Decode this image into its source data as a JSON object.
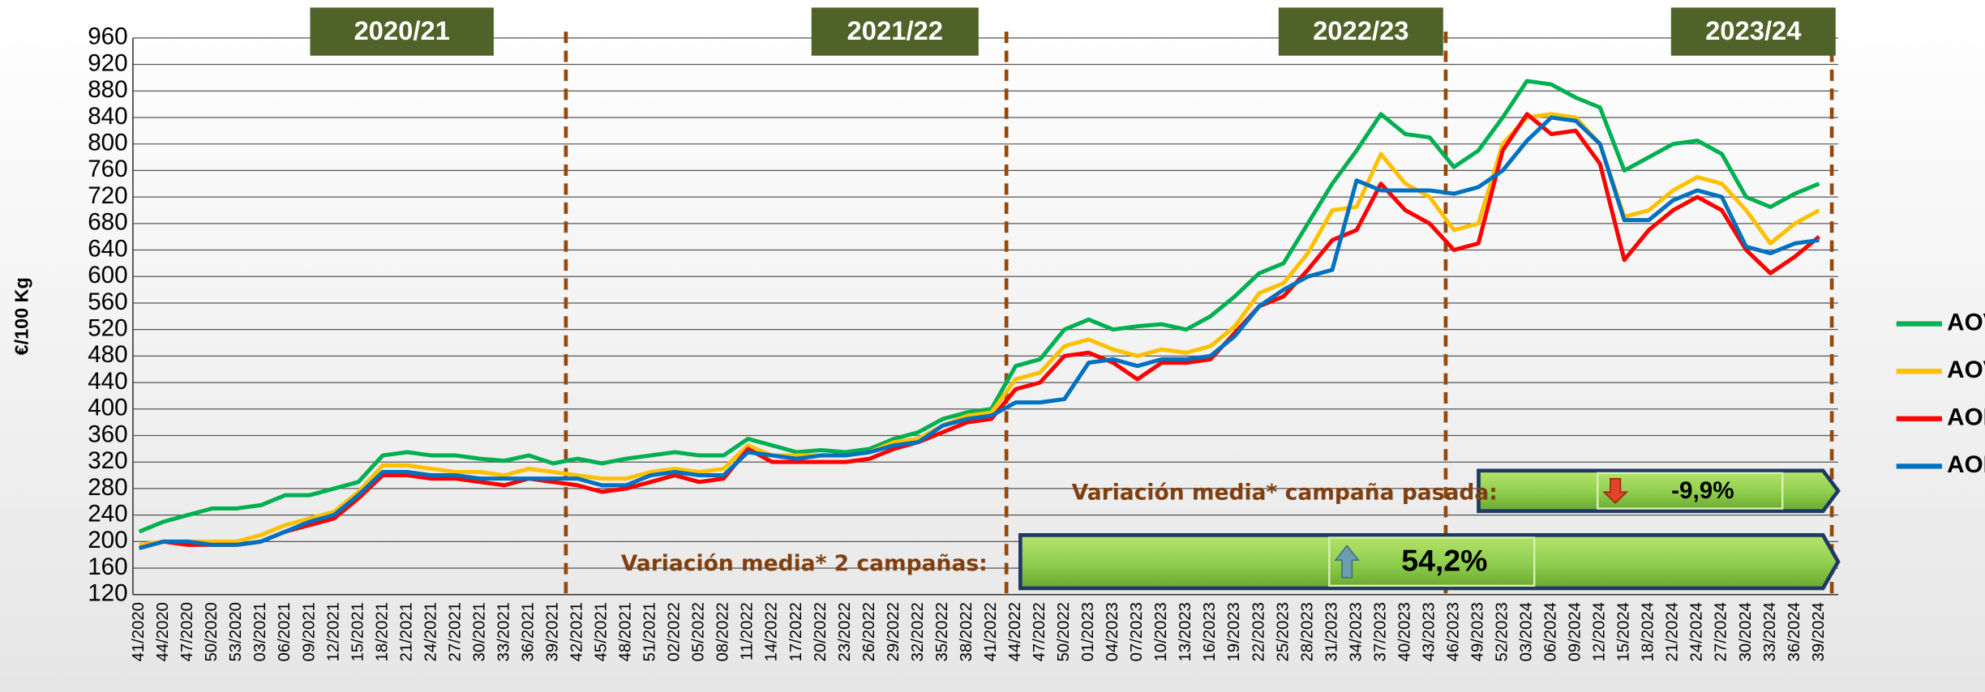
{
  "chart_data": {
    "type": "line",
    "y_label": "€/100 Kg",
    "campaigns": [
      "2020/21",
      "2021/22",
      "2022/23",
      "2023/24"
    ],
    "categories": [
      "41/2020",
      "44/2020",
      "47/2020",
      "50/2020",
      "53/2020",
      "03/2021",
      "06/2021",
      "09/2021",
      "12/2021",
      "15/2021",
      "18/2021",
      "21/2021",
      "24/2021",
      "27/2021",
      "30/2021",
      "33/2021",
      "36/2021",
      "39/2021",
      "42/2021",
      "45/2021",
      "48/2021",
      "51/2021",
      "02/2022",
      "05/2022",
      "08/2022",
      "11/2022",
      "14/2022",
      "17/2022",
      "20/2022",
      "23/2022",
      "26/2022",
      "29/2022",
      "32/2022",
      "35/2022",
      "38/2022",
      "41/2022",
      "44/2022",
      "47/2022",
      "50/2022",
      "01/2023",
      "04/2023",
      "07/2023",
      "10/2023",
      "13/2023",
      "16/2023",
      "19/2023",
      "22/2023",
      "25/2023",
      "28/2023",
      "31/2023",
      "34/2023",
      "37/2023",
      "40/2023",
      "43/2023",
      "46/2023",
      "49/2023",
      "52/2023",
      "03/2024",
      "06/2024",
      "09/2024",
      "12/2024",
      "15/2024",
      "18/2024",
      "21/2024",
      "24/2024",
      "27/2024",
      "30/2024",
      "33/2024",
      "36/2024",
      "39/2024"
    ],
    "series": [
      {
        "name": "AOVE",
        "color": "#00b050",
        "values": [
          215,
          230,
          240,
          250,
          250,
          255,
          270,
          270,
          280,
          290,
          330,
          335,
          330,
          330,
          325,
          322,
          330,
          318,
          325,
          318,
          325,
          330,
          335,
          330,
          330,
          355,
          345,
          335,
          338,
          335,
          340,
          355,
          365,
          385,
          395,
          400,
          465,
          475,
          520,
          535,
          520,
          525,
          528,
          520,
          540,
          570,
          605,
          620,
          680,
          740,
          790,
          845,
          815,
          810,
          765,
          790,
          840,
          895,
          890,
          870,
          855,
          760,
          780,
          800,
          805,
          785,
          720,
          705,
          725,
          740
        ]
      },
      {
        "name": "AOV",
        "color": "#ffc000",
        "values": [
          195,
          200,
          200,
          200,
          200,
          210,
          225,
          235,
          245,
          275,
          315,
          315,
          310,
          305,
          305,
          300,
          310,
          305,
          300,
          295,
          295,
          305,
          310,
          305,
          310,
          345,
          330,
          330,
          330,
          330,
          335,
          350,
          355,
          375,
          390,
          395,
          445,
          455,
          495,
          505,
          490,
          480,
          490,
          485,
          495,
          525,
          575,
          590,
          635,
          700,
          705,
          785,
          740,
          720,
          670,
          680,
          800,
          840,
          845,
          840,
          800,
          690,
          700,
          730,
          750,
          740,
          700,
          650,
          680,
          700
        ]
      },
      {
        "name": "AOL",
        "color": "#ff0000",
        "values": [
          190,
          200,
          195,
          195,
          195,
          200,
          215,
          225,
          235,
          265,
          300,
          300,
          295,
          295,
          290,
          285,
          295,
          290,
          285,
          275,
          280,
          290,
          300,
          290,
          295,
          340,
          320,
          320,
          320,
          320,
          325,
          340,
          350,
          365,
          380,
          385,
          430,
          440,
          480,
          485,
          470,
          445,
          470,
          470,
          475,
          515,
          555,
          570,
          610,
          655,
          670,
          740,
          700,
          680,
          640,
          650,
          790,
          845,
          815,
          820,
          770,
          625,
          670,
          700,
          720,
          700,
          640,
          605,
          630,
          660
        ]
      },
      {
        "name": "AOR",
        "color": "#0070c0",
        "values": [
          190,
          200,
          200,
          195,
          195,
          200,
          215,
          230,
          240,
          270,
          305,
          305,
          300,
          300,
          295,
          295,
          295,
          295,
          295,
          285,
          285,
          300,
          305,
          300,
          300,
          335,
          330,
          325,
          330,
          330,
          335,
          345,
          350,
          375,
          385,
          390,
          410,
          410,
          415,
          470,
          475,
          465,
          475,
          475,
          480,
          510,
          555,
          580,
          600,
          610,
          745,
          730,
          730,
          730,
          725,
          735,
          760,
          805,
          840,
          835,
          800,
          685,
          685,
          715,
          730,
          720,
          645,
          635,
          650,
          655
        ]
      }
    ],
    "ylim": [
      120,
      960
    ],
    "yticks": [
      120,
      160,
      200,
      240,
      280,
      320,
      360,
      400,
      440,
      480,
      520,
      560,
      600,
      640,
      680,
      720,
      760,
      800,
      840,
      880,
      920,
      960
    ],
    "grid": true,
    "legend": "right",
    "annotations": [
      {
        "text": "Variación media* campaña pasada:",
        "value": -9.9,
        "value_label": "-9,9%"
      },
      {
        "text": "Variación media* 2 campañas:",
        "value": 54.2,
        "value_label": "54,2%"
      }
    ]
  }
}
